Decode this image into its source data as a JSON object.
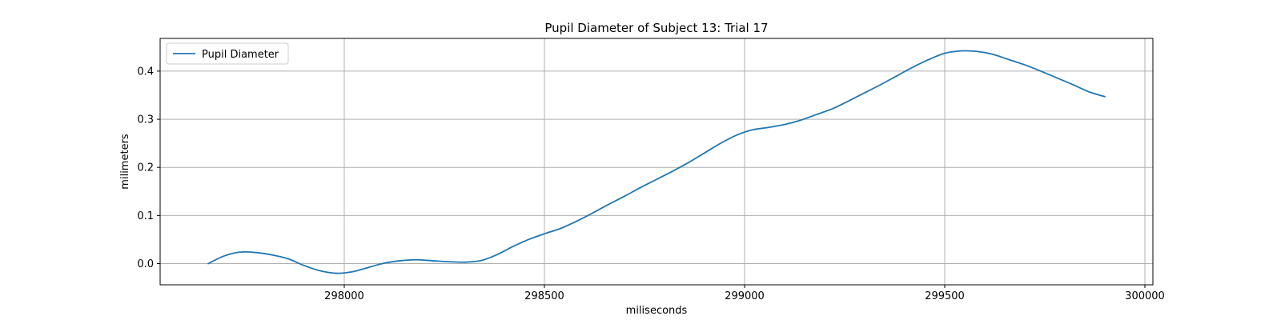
{
  "chart_data": {
    "type": "line",
    "title": "Pupil Diameter of Subject 13: Trial 17",
    "xlabel": "miliseconds",
    "ylabel": "milimeters",
    "xlim": [
      297540,
      300020
    ],
    "ylim": [
      -0.044,
      0.468
    ],
    "xticks": [
      298000,
      298500,
      299000,
      299500,
      300000
    ],
    "yticks": [
      0.0,
      0.1,
      0.2,
      0.3,
      0.4
    ],
    "grid": true,
    "legend_position": "top-left",
    "series": [
      {
        "name": "Pupil Diameter",
        "color": "#1f77b4",
        "x": [
          297660,
          297700,
          297740,
          297780,
          297820,
          297860,
          297900,
          297940,
          297980,
          298020,
          298060,
          298100,
          298140,
          298180,
          298220,
          298260,
          298300,
          298340,
          298380,
          298420,
          298460,
          298500,
          298540,
          298580,
          298620,
          298660,
          298700,
          298740,
          298780,
          298820,
          298860,
          298900,
          298940,
          298980,
          299020,
          299060,
          299100,
          299140,
          299180,
          299220,
          299260,
          299300,
          299340,
          299380,
          299420,
          299460,
          299500,
          299540,
          299580,
          299620,
          299660,
          299700,
          299740,
          299780,
          299820,
          299860,
          299900
        ],
        "y": [
          0.0,
          0.016,
          0.024,
          0.023,
          0.018,
          0.01,
          -0.004,
          -0.015,
          -0.02,
          -0.017,
          -0.008,
          0.001,
          0.006,
          0.008,
          0.006,
          0.004,
          0.003,
          0.006,
          0.018,
          0.035,
          0.05,
          0.062,
          0.073,
          0.088,
          0.105,
          0.123,
          0.14,
          0.158,
          0.175,
          0.192,
          0.21,
          0.23,
          0.25,
          0.267,
          0.278,
          0.283,
          0.289,
          0.298,
          0.31,
          0.322,
          0.338,
          0.355,
          0.372,
          0.39,
          0.408,
          0.424,
          0.437,
          0.442,
          0.441,
          0.435,
          0.424,
          0.413,
          0.4,
          0.386,
          0.372,
          0.357,
          0.347
        ]
      }
    ]
  }
}
